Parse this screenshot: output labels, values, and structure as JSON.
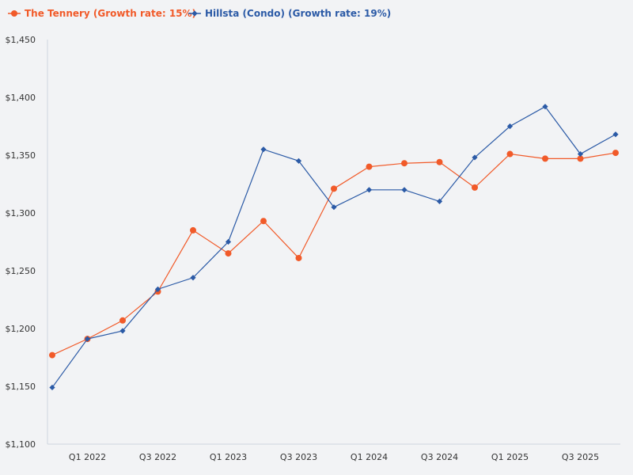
{
  "colors": {
    "tennery": "#f15a29",
    "hillsta": "#2b5aa6",
    "axis": "#cfd6df",
    "background": "#f2f3f5"
  },
  "chart_data": {
    "type": "line",
    "title": "",
    "xlabel": "",
    "ylabel": "",
    "ylim": [
      1100,
      1450
    ],
    "yticks": [
      1100,
      1150,
      1200,
      1250,
      1300,
      1350,
      1400,
      1450
    ],
    "ytick_labels": [
      "$1,100",
      "$1,150",
      "$1,200",
      "$1,250",
      "$1,300",
      "$1,350",
      "$1,400",
      "$1,450"
    ],
    "x": [
      "Q4 2021",
      "Q1 2022",
      "Q2 2022",
      "Q3 2022",
      "Q4 2022",
      "Q1 2023",
      "Q2 2023",
      "Q3 2023",
      "Q4 2023",
      "Q1 2024",
      "Q2 2024",
      "Q3 2024",
      "Q4 2024",
      "Q1 2025",
      "Q2 2025",
      "Q3 2025",
      "Q4 2025"
    ],
    "xtick_labels": [
      "Q1 2022",
      "Q3 2022",
      "Q1 2023",
      "Q3 2023",
      "Q1 2024",
      "Q3 2024",
      "Q1 2025",
      "Q3 2025"
    ],
    "xtick_index": [
      1,
      3,
      5,
      7,
      9,
      11,
      13,
      15
    ],
    "legend_position": "top-left",
    "grid": false,
    "series": [
      {
        "name": "The Tennery (Growth rate: 15%)",
        "color": "#f15a29",
        "marker": "circle",
        "values": [
          1177,
          1191,
          1207,
          1232,
          1285,
          1265,
          1293,
          1261,
          1321,
          1340,
          1343,
          1344,
          1322,
          1351,
          1347,
          1347,
          1352
        ]
      },
      {
        "name": "Hillsta (Condo) (Growth rate: 19%)",
        "color": "#2b5aa6",
        "marker": "diamond",
        "values": [
          1149,
          1191,
          1198,
          1234,
          1244,
          1275,
          1355,
          1345,
          1305,
          1320,
          1320,
          1310,
          1348,
          1375,
          1392,
          1351,
          1368
        ]
      }
    ]
  }
}
